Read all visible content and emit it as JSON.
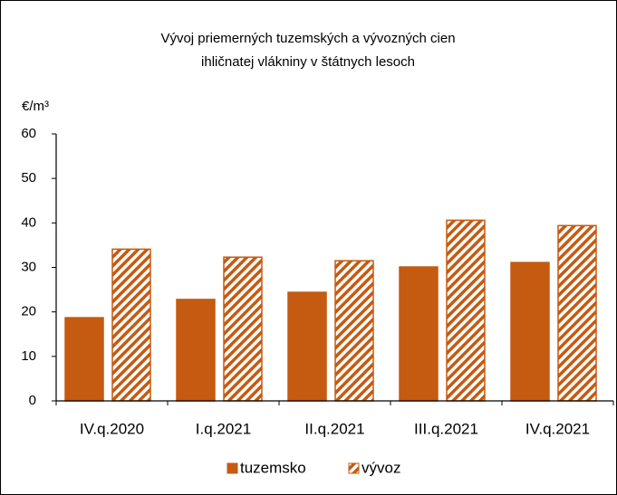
{
  "chart_data": {
    "type": "bar",
    "title": [
      "Vývoj priemerných tuzemských a vývozných cien",
      "ihličnatej vlákniny v štátnych lesoch"
    ],
    "y_label": "€/m³",
    "categories": [
      "IV.q.2020",
      "I.q.2021",
      "II.q.2021",
      "III.q.2021",
      "IV.q.2021"
    ],
    "series": [
      {
        "name": "tuzemsko",
        "color": "#c55a11",
        "pattern": "solid",
        "values": [
          18.7,
          22.8,
          24.4,
          30.1,
          31.1
        ]
      },
      {
        "name": "vývoz",
        "color": "#c55a11",
        "pattern": "hatch",
        "values": [
          34.1,
          32.3,
          31.5,
          40.6,
          39.4
        ]
      }
    ],
    "ylim": [
      0,
      60
    ],
    "yticks": [
      0,
      10,
      20,
      30,
      40,
      50,
      60
    ],
    "grid": false,
    "legend": "bottom"
  }
}
